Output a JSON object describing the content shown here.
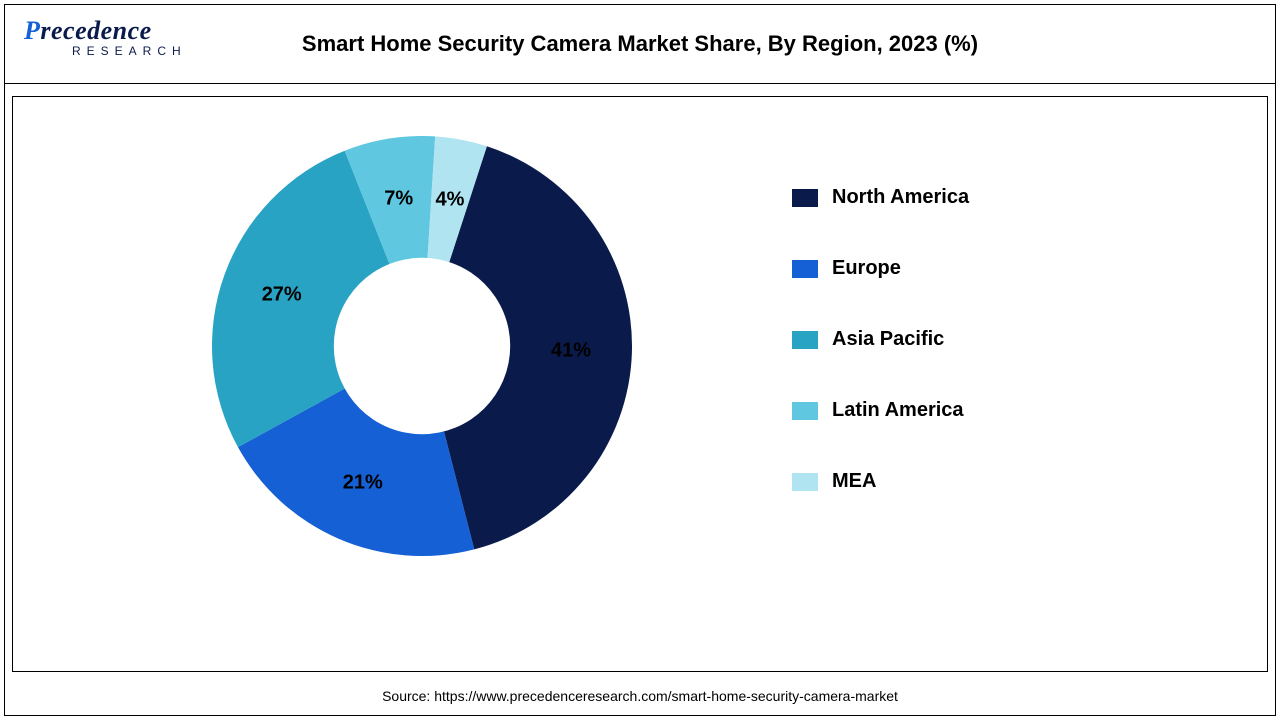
{
  "logo": {
    "main_prefix": "P",
    "main_rest": "recedence",
    "sub": "RESEARCH",
    "prefix_color": "#1560d4",
    "rest_color": "#0a1a4a"
  },
  "title": "Smart Home Security Camera Market Share, By Region, 2023 (%)",
  "chart": {
    "type": "donut",
    "start_angle_deg": 18,
    "inner_radius_ratio": 0.42,
    "background_color": "#ffffff",
    "slices": [
      {
        "label": "North America",
        "value": 41,
        "color": "#0a1a4a",
        "text": "41%"
      },
      {
        "label": "Europe",
        "value": 21,
        "color": "#1560d4",
        "text": "21%"
      },
      {
        "label": "Asia Pacific",
        "value": 27,
        "color": "#29a3c4",
        "text": "27%"
      },
      {
        "label": "Latin America",
        "value": 7,
        "color": "#5fc8e0",
        "text": "7%"
      },
      {
        "label": "MEA",
        "value": 4,
        "color": "#b0e4f0",
        "text": "4%"
      }
    ],
    "label_fontsize": 20,
    "label_fontweight": "bold",
    "label_color": "#000000"
  },
  "legend": {
    "fontsize": 20,
    "fontweight": "bold",
    "color": "#000000",
    "swatch_w": 26,
    "swatch_h": 18
  },
  "source": "Source: https://www.precedenceresearch.com/smart-home-security-camera-market"
}
